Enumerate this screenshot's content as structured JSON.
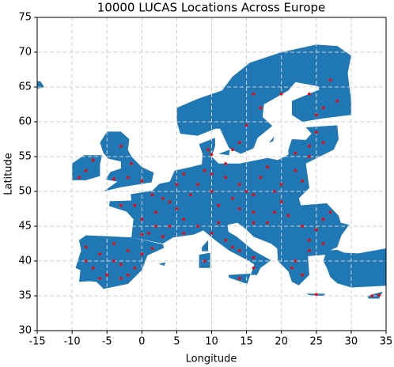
{
  "chart_data": {
    "type": "scatter",
    "title": "10000 LUCAS Locations Across Europe",
    "xlabel": "Longitude",
    "ylabel": "Latitude",
    "xlim": [
      -15,
      35
    ],
    "ylim": [
      30,
      75
    ],
    "xticks": [
      -15,
      -10,
      -5,
      0,
      5,
      10,
      15,
      20,
      25,
      30,
      35
    ],
    "yticks": [
      30,
      35,
      40,
      45,
      50,
      55,
      60,
      65,
      70,
      75
    ],
    "grid": true,
    "color": "#ff0000",
    "x": [
      -8,
      -6,
      -4,
      -2,
      0,
      -5,
      -3,
      -7,
      -1,
      -4,
      -6,
      -2,
      1.5,
      -8,
      -3,
      0,
      2,
      4,
      -1,
      1,
      3,
      5,
      6,
      -3,
      2,
      4,
      0,
      6,
      1.5,
      3,
      8,
      10,
      12,
      9,
      13,
      11,
      7,
      5,
      10,
      14,
      6,
      12,
      17,
      20,
      22,
      19,
      15,
      16,
      23,
      18,
      14,
      16,
      19,
      20,
      21,
      8,
      11,
      12,
      14,
      16,
      10,
      13,
      16,
      14,
      9,
      -2,
      0,
      -1.5,
      -3,
      -4,
      -8,
      -9,
      -7,
      14,
      15,
      17,
      20,
      16,
      26,
      24,
      27,
      25,
      28,
      13,
      24,
      25,
      22,
      26,
      24,
      23,
      26,
      25,
      27,
      24,
      26,
      22,
      21.5,
      23,
      16,
      18,
      25,
      24,
      33,
      34,
      9.5,
      10
    ],
    "y": [
      42,
      41,
      40,
      41.5,
      41,
      38,
      37.5,
      39,
      39,
      42.5,
      37.5,
      38,
      41.8,
      40,
      39.5,
      46,
      47,
      45,
      48,
      44,
      49,
      47.5,
      44,
      48,
      45,
      48.5,
      43.8,
      46,
      49.5,
      43.5,
      51,
      50,
      52,
      53,
      49,
      48,
      49.5,
      51,
      52.5,
      51,
      52.5,
      54,
      52,
      51,
      53,
      50,
      50,
      49.5,
      51.5,
      53.5,
      47.5,
      47,
      47,
      48.5,
      46.5,
      45,
      45.5,
      43,
      41.5,
      40.5,
      44,
      42,
      39,
      37.5,
      40,
      52,
      51.5,
      54,
      56.5,
      51.8,
      53,
      52,
      54.5,
      57,
      59.5,
      62,
      64,
      64,
      62,
      64,
      66,
      61,
      63,
      56,
      56.5,
      58.5,
      55.5,
      57,
      55,
      45,
      46,
      44.5,
      47,
      43,
      42.5,
      40,
      39,
      38,
      45.5,
      45.5,
      35.2,
      41.5,
      35,
      35.1,
      56,
      55.3
    ]
  }
}
